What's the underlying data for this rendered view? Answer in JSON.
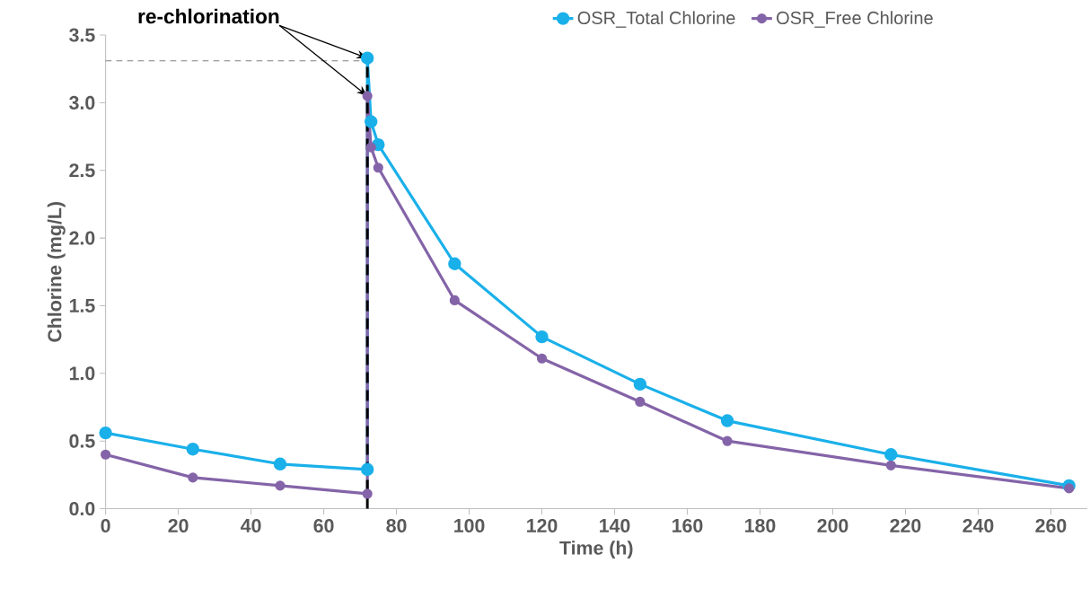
{
  "chart_data": {
    "type": "line",
    "xlabel": "Time (h)",
    "ylabel": "Chlorine (mg/L)",
    "xlim": [
      0,
      270
    ],
    "xticks": [
      0,
      20,
      40,
      60,
      80,
      100,
      120,
      140,
      160,
      180,
      200,
      220,
      240,
      260
    ],
    "ylim": [
      0,
      3.5
    ],
    "yticks": [
      {
        "value": 0,
        "label": "0.0"
      },
      {
        "value": 0.5,
        "label": "0.5"
      },
      {
        "value": 1,
        "label": "1.0"
      },
      {
        "value": 1.5,
        "label": "1.5"
      },
      {
        "value": 2,
        "label": "2.0"
      },
      {
        "value": 2.5,
        "label": "2.5"
      },
      {
        "value": 3,
        "label": "3.0"
      },
      {
        "value": 3.5,
        "label": "3.5"
      }
    ],
    "series": [
      {
        "name": "OSR_Total Chlorine",
        "color": "#1ab0ea",
        "x": [
          0,
          24,
          48,
          72,
          72,
          73,
          75,
          96,
          120,
          147,
          171,
          216,
          265
        ],
        "values": [
          0.56,
          0.44,
          0.33,
          0.29,
          3.33,
          2.86,
          2.69,
          1.81,
          1.27,
          0.92,
          0.65,
          0.4,
          0.17
        ]
      },
      {
        "name": "OSR_Free Chlorine",
        "color": "#8464a8",
        "x": [
          0,
          24,
          48,
          72,
          72,
          73,
          75,
          96,
          120,
          147,
          171,
          216,
          265
        ],
        "values": [
          0.4,
          0.23,
          0.17,
          0.11,
          3.05,
          2.67,
          2.52,
          1.54,
          1.11,
          0.79,
          0.5,
          0.32,
          0.15
        ]
      }
    ],
    "ref_lines": [
      {
        "axis": "x",
        "value": 72,
        "color": "#000000",
        "line_style": "dashed"
      },
      {
        "axis": "y",
        "value": 3.31,
        "color": "#7f7f7f",
        "line_style": "dashed"
      }
    ],
    "annotations": [
      {
        "text": "re-chlorination",
        "x": 72,
        "y": 3.33
      }
    ],
    "marker": "circle",
    "line_style": "solid",
    "legend": "top",
    "grid": false
  }
}
